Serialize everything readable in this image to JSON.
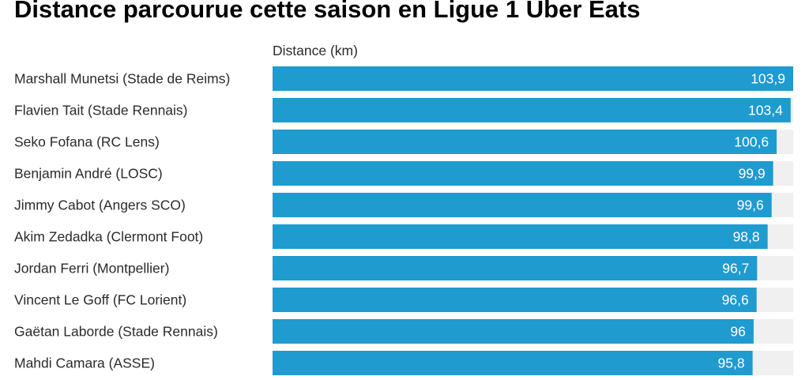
{
  "title": "Distance parcourue cette saison en Ligue 1 Uber Eats",
  "colors": {
    "bar": "#1f9bcf",
    "track": "#f0f0f0",
    "value_text": "#ffffff",
    "label_text": "#2b2b2b"
  },
  "chart_data": {
    "type": "bar",
    "orientation": "horizontal",
    "value_column_header": "Distance (km)",
    "categories": [
      "Marshall Munetsi (Stade de Reims)",
      "Flavien Tait (Stade Rennais)",
      "Seko Fofana (RC Lens)",
      "Benjamin André (LOSC)",
      "Jimmy Cabot (Angers SCO)",
      "Akim Zedadka (Clermont Foot)",
      "Jordan Ferri (Montpellier)",
      "Vincent Le Goff (FC Lorient)",
      "Gaëtan Laborde (Stade Rennais)",
      "Mahdi Camara (ASSE)"
    ],
    "values": [
      103.9,
      103.4,
      100.6,
      99.9,
      99.6,
      98.8,
      96.7,
      96.6,
      96,
      95.8
    ],
    "value_labels": [
      "103,9",
      "103,4",
      "100,6",
      "99,9",
      "99,6",
      "98,8",
      "96,7",
      "96,6",
      "96",
      "95,8"
    ],
    "xlim": [
      0,
      103.9
    ],
    "grid": false,
    "legend": "none"
  }
}
